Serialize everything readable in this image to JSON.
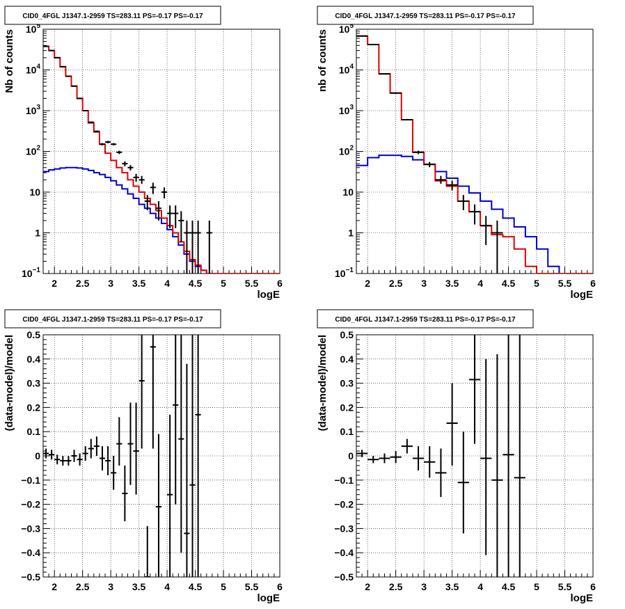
{
  "chart_data": [
    {
      "type": "step",
      "title": "CID0_4FGL J1347.1-2959 TS=283.11 PS=-0.17 PS=-0.17",
      "xlabel": "logE",
      "ylabel": "Nb of counts",
      "xlim": [
        1.8,
        6.0
      ],
      "ylim": [
        0.1,
        100000
      ],
      "yscale": "log",
      "grid": true,
      "xticks": [
        "2",
        "2.5",
        "3",
        "3.5",
        "4",
        "4.5",
        "5",
        "5.5",
        "6"
      ],
      "yticks": [
        {
          "v": 0.1,
          "mant": "10",
          "exp": "−1"
        },
        {
          "v": 1,
          "mant": "1",
          "exp": ""
        },
        {
          "v": 10,
          "mant": "10",
          "exp": ""
        },
        {
          "v": 100,
          "mant": "10",
          "exp": "2"
        },
        {
          "v": 1000,
          "mant": "10",
          "exp": "3"
        },
        {
          "v": 10000,
          "mant": "10",
          "exp": "4"
        },
        {
          "v": 100000,
          "mant": "10",
          "exp": "5"
        }
      ],
      "series": [
        {
          "color": "#0000cc",
          "x0": 1.8,
          "dx": 0.1,
          "values": [
            32,
            35,
            37,
            39,
            40,
            40,
            39,
            37,
            34,
            30,
            27,
            23,
            19,
            15,
            12,
            9,
            7,
            5,
            4,
            3,
            2.3,
            1.7,
            1.2,
            0.8,
            0.5,
            0.3,
            0.2,
            0.15,
            0.12,
            0.1,
            0.1,
            0.1,
            0.1,
            0.1,
            0.1,
            0.1,
            0.1,
            0.1,
            0.1,
            0.1,
            0.1,
            0.1
          ]
        },
        {
          "color": "#dd0000",
          "x0": 1.8,
          "dx": 0.1,
          "values": [
            38000,
            30000,
            20000,
            12000,
            7000,
            4000,
            2000,
            1000,
            500,
            300,
            150,
            90,
            60,
            40,
            30,
            20,
            14,
            10,
            7,
            5,
            3.5,
            2.3,
            1.5,
            1.0,
            0.6,
            0.35,
            0.22,
            0.16,
            0.12,
            0.1,
            0.1,
            0.1,
            0.1,
            0.1,
            0.1,
            0.1,
            0.1,
            0.1,
            0.1,
            0.1,
            0.1,
            0.1
          ]
        }
      ],
      "points": [
        {
          "x": 1.85,
          "y": 38000,
          "lo": 37600,
          "hi": 38400,
          "xerr": 0.05
        },
        {
          "x": 1.95,
          "y": 30000,
          "lo": 29700,
          "hi": 30300,
          "xerr": 0.05
        },
        {
          "x": 2.05,
          "y": 20000,
          "lo": 19700,
          "hi": 20300,
          "xerr": 0.05
        },
        {
          "x": 2.15,
          "y": 12000,
          "lo": 11800,
          "hi": 12200,
          "xerr": 0.05
        },
        {
          "x": 2.25,
          "y": 7000,
          "lo": 6900,
          "hi": 7100,
          "xerr": 0.05
        },
        {
          "x": 2.35,
          "y": 4000,
          "lo": 3940,
          "hi": 4060,
          "xerr": 0.05
        },
        {
          "x": 2.45,
          "y": 2000,
          "lo": 1960,
          "hi": 2040,
          "xerr": 0.05
        },
        {
          "x": 2.55,
          "y": 1000,
          "lo": 970,
          "hi": 1030,
          "xerr": 0.05
        },
        {
          "x": 2.65,
          "y": 520,
          "lo": 500,
          "hi": 540,
          "xerr": 0.05
        },
        {
          "x": 2.75,
          "y": 310,
          "lo": 295,
          "hi": 325,
          "xerr": 0.05
        },
        {
          "x": 2.85,
          "y": 150,
          "lo": 140,
          "hi": 160,
          "xerr": 0.05
        },
        {
          "x": 2.95,
          "y": 170,
          "lo": 158,
          "hi": 182,
          "xerr": 0.05
        },
        {
          "x": 3.05,
          "y": 150,
          "lo": 140,
          "hi": 160,
          "xerr": 0.05
        },
        {
          "x": 3.15,
          "y": 95,
          "lo": 86,
          "hi": 104,
          "xerr": 0.05
        },
        {
          "x": 3.25,
          "y": 50,
          "lo": 43,
          "hi": 57,
          "xerr": 0.05
        },
        {
          "x": 3.35,
          "y": 40,
          "lo": 34,
          "hi": 46,
          "xerr": 0.05
        },
        {
          "x": 3.45,
          "y": 23,
          "lo": 18,
          "hi": 28,
          "xerr": 0.05
        },
        {
          "x": 3.55,
          "y": 20,
          "lo": 16,
          "hi": 25,
          "xerr": 0.05
        },
        {
          "x": 3.65,
          "y": 6,
          "lo": 3.6,
          "hi": 8.5,
          "xerr": 0.05
        },
        {
          "x": 3.75,
          "y": 13,
          "lo": 9,
          "hi": 17,
          "xerr": 0.05
        },
        {
          "x": 3.85,
          "y": 4,
          "lo": 2,
          "hi": 6,
          "xerr": 0.05
        },
        {
          "x": 3.95,
          "y": 10,
          "lo": 7,
          "hi": 13,
          "xerr": 0.05
        },
        {
          "x": 4.05,
          "y": 3,
          "lo": 1.3,
          "hi": 4.7,
          "xerr": 0.05
        },
        {
          "x": 4.15,
          "y": 3,
          "lo": 1.3,
          "hi": 4.7,
          "xerr": 0.05
        },
        {
          "x": 4.25,
          "y": 2,
          "lo": 0.6,
          "hi": 3.4,
          "xerr": 0.05
        },
        {
          "x": 4.35,
          "y": 1,
          "lo": 0.1,
          "hi": 2.0,
          "xerr": 0.05
        },
        {
          "x": 4.45,
          "y": 1,
          "lo": 0.1,
          "hi": 2.0,
          "xerr": 0.05
        },
        {
          "x": 4.55,
          "y": 1,
          "lo": 0.1,
          "hi": 2.0,
          "xerr": 0.05
        },
        {
          "x": 4.75,
          "y": 1,
          "lo": 0.1,
          "hi": 2.0,
          "xerr": 0.05
        }
      ]
    },
    {
      "type": "step",
      "title": "CID0_4FGL J1347.1-2959 TS=283.11 PS=-0.17 PS=-0.17",
      "xlabel": "logE",
      "ylabel": "nb of counts",
      "xlim": [
        1.8,
        6.0
      ],
      "ylim": [
        0.1,
        100000
      ],
      "yscale": "log",
      "grid": true,
      "xticks": [
        "2",
        "2.5",
        "3",
        "3.5",
        "4",
        "4.5",
        "5",
        "5.5",
        "6"
      ],
      "yticks": [
        {
          "v": 0.1,
          "mant": "10",
          "exp": "−1"
        },
        {
          "v": 1,
          "mant": "1",
          "exp": ""
        },
        {
          "v": 10,
          "mant": "10",
          "exp": ""
        },
        {
          "v": 100,
          "mant": "10",
          "exp": "2"
        },
        {
          "v": 1000,
          "mant": "10",
          "exp": "3"
        },
        {
          "v": 10000,
          "mant": "10",
          "exp": "4"
        },
        {
          "v": 100000,
          "mant": "10",
          "exp": "5"
        }
      ],
      "series": [
        {
          "color": "#0000cc",
          "x0": 1.8,
          "dx": 0.2,
          "values": [
            45,
            70,
            80,
            80,
            75,
            62,
            48,
            32,
            22,
            14,
            9.5,
            6,
            3.8,
            2.3,
            1.4,
            0.8,
            0.4,
            0.15,
            0.1,
            0.1,
            0.1
          ]
        },
        {
          "color": "#dd0000",
          "x0": 1.8,
          "dx": 0.2,
          "values": [
            68000,
            42000,
            8000,
            2700,
            600,
            95,
            48,
            19,
            14,
            6,
            3.3,
            1.5,
            0.9,
            0.8,
            0.4,
            0.15,
            0.1,
            0.1,
            0.1,
            0.1,
            0.1
          ]
        }
      ],
      "points": [
        {
          "x": 1.9,
          "y": 68000,
          "lo": 67500,
          "hi": 68500,
          "xerr": 0.1
        },
        {
          "x": 2.1,
          "y": 42000,
          "lo": 41600,
          "hi": 42400,
          "xerr": 0.1
        },
        {
          "x": 2.3,
          "y": 8000,
          "lo": 7900,
          "hi": 8100,
          "xerr": 0.1
        },
        {
          "x": 2.5,
          "y": 2700,
          "lo": 2650,
          "hi": 2750,
          "xerr": 0.1
        },
        {
          "x": 2.7,
          "y": 600,
          "lo": 575,
          "hi": 625,
          "xerr": 0.1
        },
        {
          "x": 2.9,
          "y": 95,
          "lo": 86,
          "hi": 104,
          "xerr": 0.1
        },
        {
          "x": 3.1,
          "y": 48,
          "lo": 41,
          "hi": 55,
          "xerr": 0.1
        },
        {
          "x": 3.3,
          "y": 20,
          "lo": 16,
          "hi": 25,
          "xerr": 0.1
        },
        {
          "x": 3.5,
          "y": 15,
          "lo": 11,
          "hi": 19,
          "xerr": 0.1
        },
        {
          "x": 3.7,
          "y": 6,
          "lo": 3.6,
          "hi": 8.5,
          "xerr": 0.1
        },
        {
          "x": 3.9,
          "y": 3.3,
          "lo": 1.6,
          "hi": 5,
          "xerr": 0.1
        },
        {
          "x": 4.1,
          "y": 1.5,
          "lo": 0.5,
          "hi": 2.6,
          "xerr": 0.1
        },
        {
          "x": 4.3,
          "y": 1,
          "lo": 0.1,
          "hi": 2.0,
          "xerr": 0.1
        }
      ]
    },
    {
      "type": "errorbar",
      "title": "CID0_4FGL J1347.1-2959 TS=283.11 PS=-0.17 PS=-0.17",
      "xlabel": "logE",
      "ylabel": "(data-model)/model",
      "xlim": [
        1.8,
        6.0
      ],
      "ylim": [
        -0.5,
        0.5
      ],
      "yscale": "linear",
      "grid": true,
      "xticks": [
        "2",
        "2.5",
        "3",
        "3.5",
        "4",
        "4.5",
        "5",
        "5.5",
        "6"
      ],
      "yticks": [
        {
          "v": -0.5,
          "mant": "−0.5",
          "exp": ""
        },
        {
          "v": -0.4,
          "mant": "−0.4",
          "exp": ""
        },
        {
          "v": -0.3,
          "mant": "−0.3",
          "exp": ""
        },
        {
          "v": -0.2,
          "mant": "−0.2",
          "exp": ""
        },
        {
          "v": -0.1,
          "mant": "−0.1",
          "exp": ""
        },
        {
          "v": 0,
          "mant": "0",
          "exp": ""
        },
        {
          "v": 0.1,
          "mant": "0.1",
          "exp": ""
        },
        {
          "v": 0.2,
          "mant": "0.2",
          "exp": ""
        },
        {
          "v": 0.3,
          "mant": "0.3",
          "exp": ""
        },
        {
          "v": 0.4,
          "mant": "0.4",
          "exp": ""
        },
        {
          "v": 0.5,
          "mant": "0.5",
          "exp": ""
        }
      ],
      "series": [],
      "points": [
        {
          "x": 1.85,
          "y": 0.01,
          "lo": -0.01,
          "hi": 0.03,
          "xerr": 0.05
        },
        {
          "x": 1.95,
          "y": 0.005,
          "lo": -0.015,
          "hi": 0.025,
          "xerr": 0.05
        },
        {
          "x": 2.05,
          "y": -0.015,
          "lo": -0.035,
          "hi": 0.005,
          "xerr": 0.05
        },
        {
          "x": 2.15,
          "y": -0.02,
          "lo": -0.04,
          "hi": 0.0,
          "xerr": 0.05
        },
        {
          "x": 2.25,
          "y": -0.02,
          "lo": -0.04,
          "hi": 0.0,
          "xerr": 0.05
        },
        {
          "x": 2.35,
          "y": 0.0,
          "lo": -0.025,
          "hi": 0.025,
          "xerr": 0.05
        },
        {
          "x": 2.45,
          "y": -0.015,
          "lo": -0.04,
          "hi": 0.01,
          "xerr": 0.05
        },
        {
          "x": 2.55,
          "y": 0.01,
          "lo": -0.02,
          "hi": 0.04,
          "xerr": 0.05
        },
        {
          "x": 2.65,
          "y": 0.03,
          "lo": -0.01,
          "hi": 0.07,
          "xerr": 0.05
        },
        {
          "x": 2.75,
          "y": 0.04,
          "lo": 0.0,
          "hi": 0.08,
          "xerr": 0.05
        },
        {
          "x": 2.85,
          "y": -0.01,
          "lo": -0.06,
          "hi": 0.04,
          "xerr": 0.05
        },
        {
          "x": 2.95,
          "y": -0.02,
          "lo": -0.08,
          "hi": 0.04,
          "xerr": 0.05
        },
        {
          "x": 3.05,
          "y": -0.07,
          "lo": -0.14,
          "hi": 0.0,
          "xerr": 0.05
        },
        {
          "x": 3.15,
          "y": 0.05,
          "lo": -0.04,
          "hi": 0.16,
          "xerr": 0.05
        },
        {
          "x": 3.25,
          "y": -0.155,
          "lo": -0.27,
          "hi": -0.04,
          "xerr": 0.05
        },
        {
          "x": 3.35,
          "y": 0.05,
          "lo": -0.12,
          "hi": 0.22,
          "xerr": 0.05
        },
        {
          "x": 3.45,
          "y": 0.02,
          "lo": -0.16,
          "hi": 0.22,
          "xerr": 0.05
        },
        {
          "x": 3.55,
          "y": 0.31,
          "lo": 0.03,
          "hi": 0.5,
          "xerr": 0.05
        },
        {
          "x": 3.65,
          "y": -0.5,
          "lo": -0.5,
          "hi": -0.29,
          "xerr": 0.05
        },
        {
          "x": 3.75,
          "y": 0.45,
          "lo": 0.03,
          "hi": 0.5,
          "xerr": 0.05
        },
        {
          "x": 3.85,
          "y": -0.21,
          "lo": -0.5,
          "hi": 0.09,
          "xerr": 0.05
        },
        {
          "x": 4.05,
          "y": -0.16,
          "lo": -0.5,
          "hi": 0.17,
          "xerr": 0.05
        },
        {
          "x": 4.15,
          "y": 0.21,
          "lo": -0.2,
          "hi": 0.5,
          "xerr": 0.05
        },
        {
          "x": 4.25,
          "y": 0.07,
          "lo": -0.4,
          "hi": 0.5,
          "xerr": 0.05
        },
        {
          "x": 4.35,
          "y": -0.32,
          "lo": -0.5,
          "hi": 0.38,
          "xerr": 0.05
        },
        {
          "x": 4.45,
          "y": -0.12,
          "lo": -0.5,
          "hi": 0.5,
          "xerr": 0.05
        },
        {
          "x": 4.55,
          "y": 0.17,
          "lo": -0.5,
          "hi": 0.5,
          "xerr": 0.05
        }
      ]
    },
    {
      "type": "errorbar",
      "title": "CID0_4FGL J1347.1-2959 TS=283.11 PS=-0.17 PS=-0.17",
      "xlabel": "logE",
      "ylabel": "(data-model)/model",
      "xlim": [
        1.8,
        6.0
      ],
      "ylim": [
        -0.5,
        0.5
      ],
      "yscale": "linear",
      "grid": true,
      "xticks": [
        "2",
        "2.5",
        "3",
        "3.5",
        "4",
        "4.5",
        "5",
        "5.5",
        "6"
      ],
      "yticks": [
        {
          "v": -0.5,
          "mant": "−0.5",
          "exp": ""
        },
        {
          "v": -0.4,
          "mant": "−0.4",
          "exp": ""
        },
        {
          "v": -0.3,
          "mant": "−0.3",
          "exp": ""
        },
        {
          "v": -0.2,
          "mant": "−0.2",
          "exp": ""
        },
        {
          "v": -0.1,
          "mant": "−0.1",
          "exp": ""
        },
        {
          "v": 0,
          "mant": "0",
          "exp": ""
        },
        {
          "v": 0.1,
          "mant": "0.1",
          "exp": ""
        },
        {
          "v": 0.2,
          "mant": "0.2",
          "exp": ""
        },
        {
          "v": 0.3,
          "mant": "0.3",
          "exp": ""
        },
        {
          "v": 0.4,
          "mant": "0.4",
          "exp": ""
        },
        {
          "v": 0.5,
          "mant": "0.5",
          "exp": ""
        }
      ],
      "series": [],
      "points": [
        {
          "x": 1.9,
          "y": 0.01,
          "lo": -0.005,
          "hi": 0.025,
          "xerr": 0.1
        },
        {
          "x": 2.1,
          "y": -0.015,
          "lo": -0.03,
          "hi": 0.0,
          "xerr": 0.1
        },
        {
          "x": 2.3,
          "y": -0.01,
          "lo": -0.03,
          "hi": 0.01,
          "xerr": 0.1
        },
        {
          "x": 2.5,
          "y": -0.005,
          "lo": -0.03,
          "hi": 0.02,
          "xerr": 0.1
        },
        {
          "x": 2.7,
          "y": 0.04,
          "lo": 0.01,
          "hi": 0.07,
          "xerr": 0.1
        },
        {
          "x": 2.9,
          "y": -0.01,
          "lo": -0.06,
          "hi": 0.04,
          "xerr": 0.1
        },
        {
          "x": 3.1,
          "y": -0.025,
          "lo": -0.09,
          "hi": 0.04,
          "xerr": 0.1
        },
        {
          "x": 3.3,
          "y": -0.07,
          "lo": -0.17,
          "hi": 0.03,
          "xerr": 0.1
        },
        {
          "x": 3.5,
          "y": 0.135,
          "lo": -0.04,
          "hi": 0.3,
          "xerr": 0.1
        },
        {
          "x": 3.7,
          "y": -0.11,
          "lo": -0.32,
          "hi": 0.1,
          "xerr": 0.1
        },
        {
          "x": 3.9,
          "y": 0.315,
          "lo": 0.05,
          "hi": 0.5,
          "xerr": 0.1
        },
        {
          "x": 4.1,
          "y": -0.01,
          "lo": -0.41,
          "hi": 0.4,
          "xerr": 0.1
        },
        {
          "x": 4.3,
          "y": -0.1,
          "lo": -0.5,
          "hi": 0.42,
          "xerr": 0.1
        },
        {
          "x": 4.5,
          "y": 0.005,
          "lo": -0.5,
          "hi": 0.5,
          "xerr": 0.1
        },
        {
          "x": 4.7,
          "y": -0.09,
          "lo": -0.5,
          "hi": 0.5,
          "xerr": 0.1
        }
      ]
    }
  ]
}
